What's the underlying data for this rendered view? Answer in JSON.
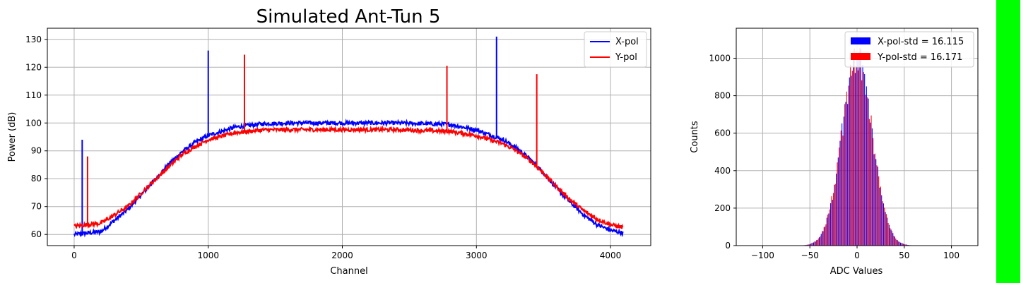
{
  "colors": {
    "x_pol": "#0000ff",
    "y_pol": "#ff0000",
    "side_bar": "#00ff00",
    "grid": "#b0b0b0"
  },
  "chart_data": [
    {
      "type": "line",
      "title": "Simulated Ant-Tun 5",
      "xlabel": "Channel",
      "ylabel": "Power (dB)",
      "xlim": [
        -200,
        4300
      ],
      "ylim": [
        56,
        134
      ],
      "xticks": [
        0,
        1000,
        2000,
        3000,
        4000
      ],
      "xtick_labels": [
        "0",
        "1000",
        "2000",
        "3000",
        "4000"
      ],
      "yticks": [
        60,
        70,
        80,
        90,
        100,
        110,
        120,
        130
      ],
      "ytick_labels": [
        "60",
        "70",
        "80",
        "90",
        "100",
        "110",
        "120",
        "130"
      ],
      "grid": true,
      "legend_position": "top-right",
      "series": [
        {
          "name": "X-pol",
          "color": "#0000ff",
          "x": [
            0,
            200,
            400,
            600,
            700,
            800,
            900,
            1000,
            1200,
            1400,
            1600,
            2000,
            2400,
            2800,
            3000,
            3200,
            3300,
            3400,
            3500,
            3600,
            3700,
            3800,
            3900,
            4000,
            4095
          ],
          "y": [
            60,
            61,
            69,
            79.5,
            85,
            89.5,
            93,
            95.5,
            98.5,
            99.7,
            100,
            100,
            100,
            99.5,
            97.5,
            94,
            91,
            87,
            82,
            76.5,
            71.5,
            67,
            63.5,
            61.5,
            60.5
          ],
          "spikes": [
            {
              "channel": 60,
              "value": 94
            },
            {
              "channel": 1000,
              "value": 126
            },
            {
              "channel": 3150,
              "value": 131
            }
          ]
        },
        {
          "name": "Y-pol",
          "color": "#ff0000",
          "x": [
            0,
            200,
            400,
            600,
            700,
            800,
            900,
            1000,
            1200,
            1400,
            1600,
            2000,
            2400,
            2800,
            3000,
            3200,
            3300,
            3400,
            3500,
            3600,
            3700,
            3800,
            3900,
            4000,
            4095
          ],
          "y": [
            63,
            64,
            70,
            79.5,
            84,
            88.5,
            91.5,
            94,
            96.5,
            97.5,
            97.6,
            97.6,
            97.6,
            97,
            95.5,
            92.5,
            90,
            86.5,
            82,
            77,
            72.5,
            68.5,
            65.5,
            63.5,
            62.5
          ],
          "spikes": [
            {
              "channel": 100,
              "value": 88
            },
            {
              "channel": 1270,
              "value": 124.5
            },
            {
              "channel": 2780,
              "value": 120.5
            },
            {
              "channel": 3450,
              "value": 117.5
            }
          ]
        }
      ]
    },
    {
      "type": "bar",
      "title": "",
      "xlabel": "ADC Values",
      "ylabel": "Counts",
      "xlim": [
        -128,
        128
      ],
      "ylim": [
        0,
        1160
      ],
      "xticks": [
        -100,
        -50,
        0,
        50,
        100
      ],
      "xtick_labels": [
        "−100",
        "−50",
        "0",
        "50",
        "100"
      ],
      "yticks": [
        0,
        200,
        400,
        600,
        800,
        1000
      ],
      "ytick_labels": [
        "0",
        "200",
        "400",
        "600",
        "800",
        "1000"
      ],
      "grid": true,
      "legend_position": "top-right",
      "series": [
        {
          "name": "X-pol-std = 16.115",
          "color": "#0000ff",
          "mean": 0,
          "std": 16.115,
          "peak": 1000
        },
        {
          "name": "Y-pol-std = 16.171",
          "color": "#ff0000",
          "mean": 0,
          "std": 16.171,
          "peak": 1000
        }
      ]
    }
  ]
}
